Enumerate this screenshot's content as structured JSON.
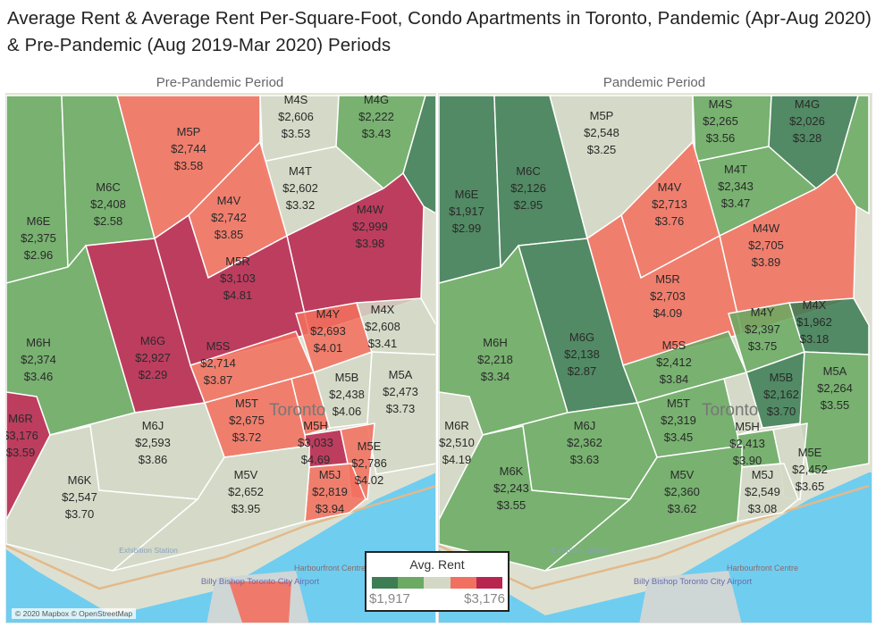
{
  "title": "Average Rent & Average Rent Per-Square-Foot, Condo Apartments in Toronto, Pandemic (Apr-Aug 2020) & Pre-Pandemic (Aug 2019-Mar 2020) Periods",
  "legend": {
    "title": "Avg. Rent",
    "min": "$1,917",
    "max": "$3,176",
    "min_value": 1917,
    "max_value": 3176,
    "colors": [
      "#3d7d54",
      "#6aaa62",
      "#d3d8c5",
      "#f2705f",
      "#b8264f"
    ]
  },
  "attribution": "© 2020 Mapbox © OpenStreetMap",
  "map_labels": {
    "city": "Toronto",
    "harbourfront": "Harbourfront Centre",
    "airport": "Billy Bishop Toronto City Airport",
    "station": "Exhibition Station"
  },
  "panels": [
    {
      "title": "Pre-Pandemic Period",
      "regions": [
        {
          "code": "M6E",
          "rent": "$2,375",
          "psf": "$2.96",
          "value": 2375
        },
        {
          "code": "M6C",
          "rent": "$2,408",
          "psf": "$2.58",
          "value": 2408
        },
        {
          "code": "M5P",
          "rent": "$2,744",
          "psf": "$3.58",
          "value": 2744
        },
        {
          "code": "M4S",
          "rent": "$2,606",
          "psf": "$3.53",
          "value": 2606
        },
        {
          "code": "M4G",
          "rent": "$2,222",
          "psf": "$3.43",
          "value": 2222
        },
        {
          "code": "M4T",
          "rent": "$2,602",
          "psf": "$3.32",
          "value": 2602
        },
        {
          "code": "M4V",
          "rent": "$2,742",
          "psf": "$3.85",
          "value": 2742
        },
        {
          "code": "M4W",
          "rent": "$2,999",
          "psf": "$3.98",
          "value": 2999
        },
        {
          "code": "M5R",
          "rent": "$3,103",
          "psf": "$4.81",
          "value": 3103
        },
        {
          "code": "M6G",
          "rent": "$2,927",
          "psf": "$2.29",
          "value": 2927
        },
        {
          "code": "M6H",
          "rent": "$2,374",
          "psf": "$3.46",
          "value": 2374
        },
        {
          "code": "M4Y",
          "rent": "$2,693",
          "psf": "$4.01",
          "value": 2693
        },
        {
          "code": "M4X",
          "rent": "$2,608",
          "psf": "$3.41",
          "value": 2608
        },
        {
          "code": "M5S",
          "rent": "$2,714",
          "psf": "$3.87",
          "value": 2714
        },
        {
          "code": "M5B",
          "rent": "$2,438",
          "psf": "$4.06",
          "value": 2438
        },
        {
          "code": "M5A",
          "rent": "$2,473",
          "psf": "$3.73",
          "value": 2473
        },
        {
          "code": "M5T",
          "rent": "$2,675",
          "psf": "$3.72",
          "value": 2675
        },
        {
          "code": "M6R",
          "rent": "$3,176",
          "psf": "$3.59",
          "value": 3176
        },
        {
          "code": "M6J",
          "rent": "$2,593",
          "psf": "$3.86",
          "value": 2593
        },
        {
          "code": "M6K",
          "rent": "$2,547",
          "psf": "$3.70",
          "value": 2547
        },
        {
          "code": "M5V",
          "rent": "$2,652",
          "psf": "$3.95",
          "value": 2652
        },
        {
          "code": "M5H",
          "rent": "$3,033",
          "psf": "$4.69",
          "value": 3033
        },
        {
          "code": "M5E",
          "rent": "$2,786",
          "psf": "$4.02",
          "value": 2786
        },
        {
          "code": "M5J",
          "rent": "$2,819",
          "psf": "$3.94",
          "value": 2819
        }
      ]
    },
    {
      "title": "Pandemic Period",
      "regions": [
        {
          "code": "M6E",
          "rent": "$1,917",
          "psf": "$2.99",
          "value": 1917
        },
        {
          "code": "M6C",
          "rent": "$2,126",
          "psf": "$2.95",
          "value": 2126
        },
        {
          "code": "M5P",
          "rent": "$2,548",
          "psf": "$3.25",
          "value": 2548
        },
        {
          "code": "M4S",
          "rent": "$2,265",
          "psf": "$3.56",
          "value": 2265
        },
        {
          "code": "M4G",
          "rent": "$2,026",
          "psf": "$3.28",
          "value": 2026
        },
        {
          "code": "M4T",
          "rent": "$2,343",
          "psf": "$3.47",
          "value": 2343
        },
        {
          "code": "M4V",
          "rent": "$2,713",
          "psf": "$3.76",
          "value": 2713
        },
        {
          "code": "M4W",
          "rent": "$2,705",
          "psf": "$3.89",
          "value": 2705
        },
        {
          "code": "M5R",
          "rent": "$2,703",
          "psf": "$4.09",
          "value": 2703
        },
        {
          "code": "M6G",
          "rent": "$2,138",
          "psf": "$2.87",
          "value": 2138
        },
        {
          "code": "M6H",
          "rent": "$2,218",
          "psf": "$3.34",
          "value": 2218
        },
        {
          "code": "M4Y",
          "rent": "$2,397",
          "psf": "$3.75",
          "value": 2397
        },
        {
          "code": "M4X",
          "rent": "$1,962",
          "psf": "$3.18",
          "value": 1962
        },
        {
          "code": "M5S",
          "rent": "$2,412",
          "psf": "$3.84",
          "value": 2412
        },
        {
          "code": "M5B",
          "rent": "$2,162",
          "psf": "$3.70",
          "value": 2162
        },
        {
          "code": "M5A",
          "rent": "$2,264",
          "psf": "$3.55",
          "value": 2264
        },
        {
          "code": "M5T",
          "rent": "$2,319",
          "psf": "$3.45",
          "value": 2319
        },
        {
          "code": "M6R",
          "rent": "$2,510",
          "psf": "$4.19",
          "value": 2510
        },
        {
          "code": "M6J",
          "rent": "$2,362",
          "psf": "$3.63",
          "value": 2362
        },
        {
          "code": "M6K",
          "rent": "$2,243",
          "psf": "$3.55",
          "value": 2243
        },
        {
          "code": "M5V",
          "rent": "$2,360",
          "psf": "$3.62",
          "value": 2360
        },
        {
          "code": "M5H",
          "rent": "$2,413",
          "psf": "$3.90",
          "value": 2413
        },
        {
          "code": "M5E",
          "rent": "$2,452",
          "psf": "$3.65",
          "value": 2452
        },
        {
          "code": "M5J",
          "rent": "$2,549",
          "psf": "$3.08",
          "value": 2549
        }
      ]
    }
  ]
}
